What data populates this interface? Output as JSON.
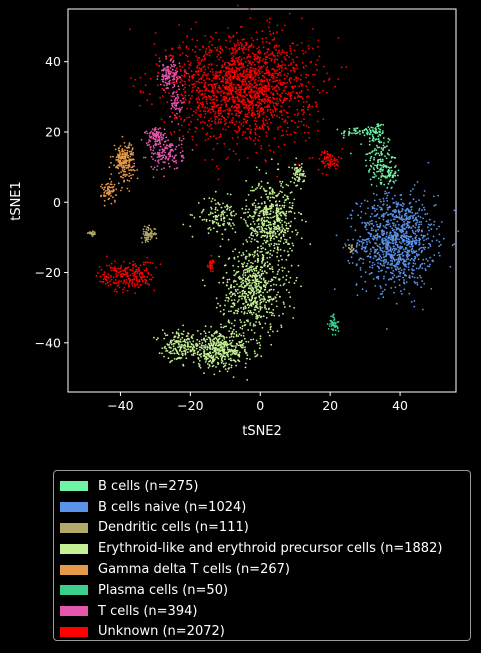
{
  "chart_data": {
    "type": "scatter",
    "xlabel": "tSNE2",
    "ylabel": "tSNE1",
    "xlim": [
      -55,
      56
    ],
    "ylim": [
      -54,
      55
    ],
    "xticks": [
      -40,
      -20,
      0,
      20,
      40
    ],
    "yticks": [
      -40,
      -20,
      0,
      20,
      40
    ],
    "xtick_labels": [
      "−40",
      "−20",
      "0",
      "20",
      "40"
    ],
    "ytick_labels": [
      "−40",
      "−20",
      "0",
      "20",
      "40"
    ],
    "grid": false,
    "legend_position": "below",
    "series": [
      {
        "name": "B cells (n=275)",
        "color": "#6ff3a5",
        "count": 275,
        "clusters": [
          {
            "cx": 34,
            "cy": 12,
            "sx": 2,
            "sy": 4,
            "n": 120
          },
          {
            "cx": 33,
            "cy": 20,
            "sx": 1.5,
            "sy": 1.5,
            "n": 60
          },
          {
            "cx": 27,
            "cy": 20,
            "sx": 2,
            "sy": 0.7,
            "n": 40
          },
          {
            "cx": 37,
            "cy": 8,
            "sx": 1,
            "sy": 2,
            "n": 55
          }
        ]
      },
      {
        "name": "B cells naive (n=1024)",
        "color": "#5b93e8",
        "count": 1024,
        "clusters": [
          {
            "cx": 39,
            "cy": -11,
            "sx": 5.5,
            "sy": 6.5,
            "n": 1024
          }
        ]
      },
      {
        "name": "Dendritic cells (n=111)",
        "color": "#b3a96a",
        "count": 111,
        "clusters": [
          {
            "cx": -32,
            "cy": -9,
            "sx": 1,
            "sy": 1,
            "n": 70
          },
          {
            "cx": -48,
            "cy": -9,
            "sx": 0.6,
            "sy": 0.3,
            "n": 25
          },
          {
            "cx": 26,
            "cy": -13,
            "sx": 0.5,
            "sy": 0.5,
            "n": 16
          }
        ]
      },
      {
        "name": "Erythroid-like and erythroid precursor cells (n=1882)",
        "color": "#c3f193",
        "count": 1882,
        "clusters": [
          {
            "cx": 3,
            "cy": -5,
            "sx": 3.5,
            "sy": 6,
            "n": 500
          },
          {
            "cx": -2,
            "cy": -25,
            "sx": 4.5,
            "sy": 6,
            "n": 600
          },
          {
            "cx": -12,
            "cy": -42,
            "sx": 5,
            "sy": 2.5,
            "n": 450
          },
          {
            "cx": -23,
            "cy": -41,
            "sx": 2.5,
            "sy": 2,
            "n": 150
          },
          {
            "cx": -12,
            "cy": -4,
            "sx": 3,
            "sy": 2.5,
            "n": 120
          },
          {
            "cx": 11,
            "cy": 8,
            "sx": 0.8,
            "sy": 1.5,
            "n": 62
          }
        ]
      },
      {
        "name": "Gamma delta T cells (n=267)",
        "color": "#e7994a",
        "count": 267,
        "clusters": [
          {
            "cx": -39,
            "cy": 12,
            "sx": 1.5,
            "sy": 2.5,
            "n": 200
          },
          {
            "cx": -43,
            "cy": 3,
            "sx": 1.2,
            "sy": 1.5,
            "n": 67
          }
        ]
      },
      {
        "name": "Plasma cells (n=50)",
        "color": "#3bcf8c",
        "count": 50,
        "clusters": [
          {
            "cx": 21,
            "cy": -35,
            "sx": 0.7,
            "sy": 1.5,
            "n": 50
          }
        ]
      },
      {
        "name": "T cells (n=394)",
        "color": "#e457ad",
        "count": 394,
        "clusters": [
          {
            "cx": -27,
            "cy": 14,
            "sx": 2.5,
            "sy": 2.5,
            "n": 150
          },
          {
            "cx": -30,
            "cy": 19,
            "sx": 1.5,
            "sy": 1,
            "n": 70
          },
          {
            "cx": -26,
            "cy": 36,
            "sx": 1.5,
            "sy": 2,
            "n": 120
          },
          {
            "cx": -24,
            "cy": 28,
            "sx": 1,
            "sy": 2,
            "n": 54
          }
        ]
      },
      {
        "name": "Unknown (n=2072)",
        "color": "#ff0000",
        "count": 2072,
        "clusters": [
          {
            "cx": -5,
            "cy": 33,
            "sx": 10,
            "sy": 7.5,
            "n": 1750
          },
          {
            "cx": -38,
            "cy": -21,
            "sx": 4,
            "sy": 2.2,
            "n": 220
          },
          {
            "cx": 20,
            "cy": 12,
            "sx": 1.5,
            "sy": 1.5,
            "n": 70
          },
          {
            "cx": -14,
            "cy": -18,
            "sx": 0.5,
            "sy": 1,
            "n": 32
          }
        ]
      }
    ]
  }
}
